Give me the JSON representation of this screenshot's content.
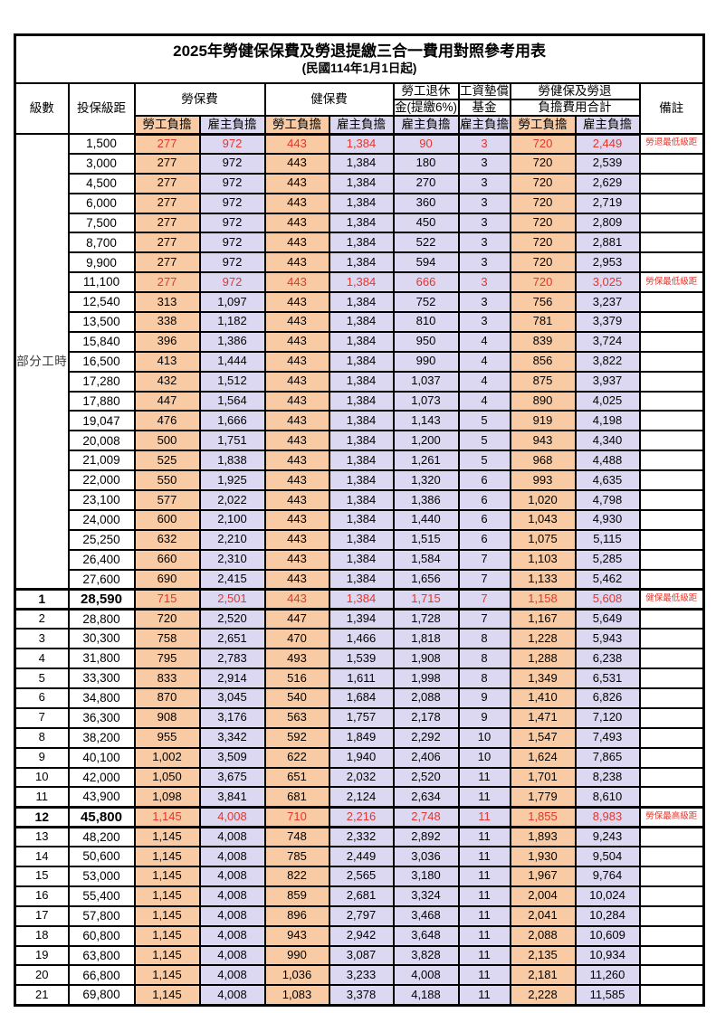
{
  "title": "2025年勞健保保費及勞退提繳三合一費用對照參考用表",
  "subtitle": "(民國114年1月1日起)",
  "colors": {
    "employee_column_bg": "#F8CBA4",
    "employer_column_bg": "#DCD8F1",
    "highlight_red": "#E3362C",
    "grid_border": "#000000"
  },
  "columns": {
    "level": "級數",
    "bracket": "投保級距",
    "labor_insurance": "勞保費",
    "health_insurance": "健保費",
    "pension_line1": "勞工退休",
    "pension_line2": "金(提繳6%)",
    "wage_fund_line1": "工資墊償",
    "wage_fund_line2": "基金",
    "total_line1": "勞健保及勞退",
    "total_line2": "負擔費用合計",
    "remark": "備註",
    "employee": "勞工負擔",
    "employer": "雇主負擔"
  },
  "part_time": {
    "label": "部分工時",
    "rowspan": 23
  },
  "rows": [
    {
      "sec": "pt",
      "level": "",
      "bracket": "1,500",
      "v": [
        "277",
        "972",
        "443",
        "1,384",
        "90",
        "3",
        "720",
        "2,449"
      ],
      "remark": "勞退最低級距",
      "red": true,
      "bold": false,
      "thick": false
    },
    {
      "sec": "pt",
      "level": "",
      "bracket": "3,000",
      "v": [
        "277",
        "972",
        "443",
        "1,384",
        "180",
        "3",
        "720",
        "2,539"
      ],
      "remark": "",
      "red": false,
      "bold": false,
      "thick": false
    },
    {
      "sec": "pt",
      "level": "",
      "bracket": "4,500",
      "v": [
        "277",
        "972",
        "443",
        "1,384",
        "270",
        "3",
        "720",
        "2,629"
      ],
      "remark": "",
      "red": false,
      "bold": false,
      "thick": false
    },
    {
      "sec": "pt",
      "level": "",
      "bracket": "6,000",
      "v": [
        "277",
        "972",
        "443",
        "1,384",
        "360",
        "3",
        "720",
        "2,719"
      ],
      "remark": "",
      "red": false,
      "bold": false,
      "thick": false
    },
    {
      "sec": "pt",
      "level": "",
      "bracket": "7,500",
      "v": [
        "277",
        "972",
        "443",
        "1,384",
        "450",
        "3",
        "720",
        "2,809"
      ],
      "remark": "",
      "red": false,
      "bold": false,
      "thick": false
    },
    {
      "sec": "pt",
      "level": "",
      "bracket": "8,700",
      "v": [
        "277",
        "972",
        "443",
        "1,384",
        "522",
        "3",
        "720",
        "2,881"
      ],
      "remark": "",
      "red": false,
      "bold": false,
      "thick": false
    },
    {
      "sec": "pt",
      "level": "",
      "bracket": "9,900",
      "v": [
        "277",
        "972",
        "443",
        "1,384",
        "594",
        "3",
        "720",
        "2,953"
      ],
      "remark": "",
      "red": false,
      "bold": false,
      "thick": false
    },
    {
      "sec": "pt",
      "level": "",
      "bracket": "11,100",
      "v": [
        "277",
        "972",
        "443",
        "1,384",
        "666",
        "3",
        "720",
        "3,025"
      ],
      "remark": "勞保最低級距",
      "red": true,
      "bold": false,
      "thick": false
    },
    {
      "sec": "pt",
      "level": "",
      "bracket": "12,540",
      "v": [
        "313",
        "1,097",
        "443",
        "1,384",
        "752",
        "3",
        "756",
        "3,237"
      ],
      "remark": "",
      "red": false,
      "bold": false,
      "thick": false
    },
    {
      "sec": "pt",
      "level": "",
      "bracket": "13,500",
      "v": [
        "338",
        "1,182",
        "443",
        "1,384",
        "810",
        "3",
        "781",
        "3,379"
      ],
      "remark": "",
      "red": false,
      "bold": false,
      "thick": false
    },
    {
      "sec": "pt",
      "level": "",
      "bracket": "15,840",
      "v": [
        "396",
        "1,386",
        "443",
        "1,384",
        "950",
        "4",
        "839",
        "3,724"
      ],
      "remark": "",
      "red": false,
      "bold": false,
      "thick": false
    },
    {
      "sec": "pt",
      "level": "",
      "bracket": "16,500",
      "v": [
        "413",
        "1,444",
        "443",
        "1,384",
        "990",
        "4",
        "856",
        "3,822"
      ],
      "remark": "",
      "red": false,
      "bold": false,
      "thick": false
    },
    {
      "sec": "pt",
      "level": "",
      "bracket": "17,280",
      "v": [
        "432",
        "1,512",
        "443",
        "1,384",
        "1,037",
        "4",
        "875",
        "3,937"
      ],
      "remark": "",
      "red": false,
      "bold": false,
      "thick": false
    },
    {
      "sec": "pt",
      "level": "",
      "bracket": "17,880",
      "v": [
        "447",
        "1,564",
        "443",
        "1,384",
        "1,073",
        "4",
        "890",
        "4,025"
      ],
      "remark": "",
      "red": false,
      "bold": false,
      "thick": false
    },
    {
      "sec": "pt",
      "level": "",
      "bracket": "19,047",
      "v": [
        "476",
        "1,666",
        "443",
        "1,384",
        "1,143",
        "5",
        "919",
        "4,198"
      ],
      "remark": "",
      "red": false,
      "bold": false,
      "thick": false
    },
    {
      "sec": "pt",
      "level": "",
      "bracket": "20,008",
      "v": [
        "500",
        "1,751",
        "443",
        "1,384",
        "1,200",
        "5",
        "943",
        "4,340"
      ],
      "remark": "",
      "red": false,
      "bold": false,
      "thick": false
    },
    {
      "sec": "pt",
      "level": "",
      "bracket": "21,009",
      "v": [
        "525",
        "1,838",
        "443",
        "1,384",
        "1,261",
        "5",
        "968",
        "4,488"
      ],
      "remark": "",
      "red": false,
      "bold": false,
      "thick": false
    },
    {
      "sec": "pt",
      "level": "",
      "bracket": "22,000",
      "v": [
        "550",
        "1,925",
        "443",
        "1,384",
        "1,320",
        "6",
        "993",
        "4,635"
      ],
      "remark": "",
      "red": false,
      "bold": false,
      "thick": false
    },
    {
      "sec": "pt",
      "level": "",
      "bracket": "23,100",
      "v": [
        "577",
        "2,022",
        "443",
        "1,384",
        "1,386",
        "6",
        "1,020",
        "4,798"
      ],
      "remark": "",
      "red": false,
      "bold": false,
      "thick": false
    },
    {
      "sec": "pt",
      "level": "",
      "bracket": "24,000",
      "v": [
        "600",
        "2,100",
        "443",
        "1,384",
        "1,440",
        "6",
        "1,043",
        "4,930"
      ],
      "remark": "",
      "red": false,
      "bold": false,
      "thick": false
    },
    {
      "sec": "pt",
      "level": "",
      "bracket": "25,250",
      "v": [
        "632",
        "2,210",
        "443",
        "1,384",
        "1,515",
        "6",
        "1,075",
        "5,115"
      ],
      "remark": "",
      "red": false,
      "bold": false,
      "thick": false
    },
    {
      "sec": "pt",
      "level": "",
      "bracket": "26,400",
      "v": [
        "660",
        "2,310",
        "443",
        "1,384",
        "1,584",
        "7",
        "1,103",
        "5,285"
      ],
      "remark": "",
      "red": false,
      "bold": false,
      "thick": false
    },
    {
      "sec": "pt",
      "level": "",
      "bracket": "27,600",
      "v": [
        "690",
        "2,415",
        "443",
        "1,384",
        "1,656",
        "7",
        "1,133",
        "5,462"
      ],
      "remark": "",
      "red": false,
      "bold": false,
      "thick": false
    },
    {
      "sec": "n",
      "level": "1",
      "bracket": "28,590",
      "v": [
        "715",
        "2,501",
        "443",
        "1,384",
        "1,715",
        "7",
        "1,158",
        "5,608"
      ],
      "remark": "健保最低級距",
      "red": true,
      "bold": true,
      "thick": true
    },
    {
      "sec": "n",
      "level": "2",
      "bracket": "28,800",
      "v": [
        "720",
        "2,520",
        "447",
        "1,394",
        "1,728",
        "7",
        "1,167",
        "5,649"
      ],
      "remark": "",
      "red": false,
      "bold": false,
      "thick": false
    },
    {
      "sec": "n",
      "level": "3",
      "bracket": "30,300",
      "v": [
        "758",
        "2,651",
        "470",
        "1,466",
        "1,818",
        "8",
        "1,228",
        "5,943"
      ],
      "remark": "",
      "red": false,
      "bold": false,
      "thick": false
    },
    {
      "sec": "n",
      "level": "4",
      "bracket": "31,800",
      "v": [
        "795",
        "2,783",
        "493",
        "1,539",
        "1,908",
        "8",
        "1,288",
        "6,238"
      ],
      "remark": "",
      "red": false,
      "bold": false,
      "thick": false
    },
    {
      "sec": "n",
      "level": "5",
      "bracket": "33,300",
      "v": [
        "833",
        "2,914",
        "516",
        "1,611",
        "1,998",
        "8",
        "1,349",
        "6,531"
      ],
      "remark": "",
      "red": false,
      "bold": false,
      "thick": false
    },
    {
      "sec": "n",
      "level": "6",
      "bracket": "34,800",
      "v": [
        "870",
        "3,045",
        "540",
        "1,684",
        "2,088",
        "9",
        "1,410",
        "6,826"
      ],
      "remark": "",
      "red": false,
      "bold": false,
      "thick": false
    },
    {
      "sec": "n",
      "level": "7",
      "bracket": "36,300",
      "v": [
        "908",
        "3,176",
        "563",
        "1,757",
        "2,178",
        "9",
        "1,471",
        "7,120"
      ],
      "remark": "",
      "red": false,
      "bold": false,
      "thick": false
    },
    {
      "sec": "n",
      "level": "8",
      "bracket": "38,200",
      "v": [
        "955",
        "3,342",
        "592",
        "1,849",
        "2,292",
        "10",
        "1,547",
        "7,493"
      ],
      "remark": "",
      "red": false,
      "bold": false,
      "thick": false
    },
    {
      "sec": "n",
      "level": "9",
      "bracket": "40,100",
      "v": [
        "1,002",
        "3,509",
        "622",
        "1,940",
        "2,406",
        "10",
        "1,624",
        "7,865"
      ],
      "remark": "",
      "red": false,
      "bold": false,
      "thick": false
    },
    {
      "sec": "n",
      "level": "10",
      "bracket": "42,000",
      "v": [
        "1,050",
        "3,675",
        "651",
        "2,032",
        "2,520",
        "11",
        "1,701",
        "8,238"
      ],
      "remark": "",
      "red": false,
      "bold": false,
      "thick": false
    },
    {
      "sec": "n",
      "level": "11",
      "bracket": "43,900",
      "v": [
        "1,098",
        "3,841",
        "681",
        "2,124",
        "2,634",
        "11",
        "1,779",
        "8,610"
      ],
      "remark": "",
      "red": false,
      "bold": false,
      "thick": false
    },
    {
      "sec": "n",
      "level": "12",
      "bracket": "45,800",
      "v": [
        "1,145",
        "4,008",
        "710",
        "2,216",
        "2,748",
        "11",
        "1,855",
        "8,983"
      ],
      "remark": "勞保最高級距",
      "red": true,
      "bold": true,
      "thick": true
    },
    {
      "sec": "n",
      "level": "13",
      "bracket": "48,200",
      "v": [
        "1,145",
        "4,008",
        "748",
        "2,332",
        "2,892",
        "11",
        "1,893",
        "9,243"
      ],
      "remark": "",
      "red": false,
      "bold": false,
      "thick": false
    },
    {
      "sec": "n",
      "level": "14",
      "bracket": "50,600",
      "v": [
        "1,145",
        "4,008",
        "785",
        "2,449",
        "3,036",
        "11",
        "1,930",
        "9,504"
      ],
      "remark": "",
      "red": false,
      "bold": false,
      "thick": false
    },
    {
      "sec": "n",
      "level": "15",
      "bracket": "53,000",
      "v": [
        "1,145",
        "4,008",
        "822",
        "2,565",
        "3,180",
        "11",
        "1,967",
        "9,764"
      ],
      "remark": "",
      "red": false,
      "bold": false,
      "thick": false
    },
    {
      "sec": "n",
      "level": "16",
      "bracket": "55,400",
      "v": [
        "1,145",
        "4,008",
        "859",
        "2,681",
        "3,324",
        "11",
        "2,004",
        "10,024"
      ],
      "remark": "",
      "red": false,
      "bold": false,
      "thick": false
    },
    {
      "sec": "n",
      "level": "17",
      "bracket": "57,800",
      "v": [
        "1,145",
        "4,008",
        "896",
        "2,797",
        "3,468",
        "11",
        "2,041",
        "10,284"
      ],
      "remark": "",
      "red": false,
      "bold": false,
      "thick": false
    },
    {
      "sec": "n",
      "level": "18",
      "bracket": "60,800",
      "v": [
        "1,145",
        "4,008",
        "943",
        "2,942",
        "3,648",
        "11",
        "2,088",
        "10,609"
      ],
      "remark": "",
      "red": false,
      "bold": false,
      "thick": false
    },
    {
      "sec": "n",
      "level": "19",
      "bracket": "63,800",
      "v": [
        "1,145",
        "4,008",
        "990",
        "3,087",
        "3,828",
        "11",
        "2,135",
        "10,934"
      ],
      "remark": "",
      "red": false,
      "bold": false,
      "thick": false
    },
    {
      "sec": "n",
      "level": "20",
      "bracket": "66,800",
      "v": [
        "1,145",
        "4,008",
        "1,036",
        "3,233",
        "4,008",
        "11",
        "2,181",
        "11,260"
      ],
      "remark": "",
      "red": false,
      "bold": false,
      "thick": false
    },
    {
      "sec": "n",
      "level": "21",
      "bracket": "69,800",
      "v": [
        "1,145",
        "4,008",
        "1,083",
        "3,378",
        "4,188",
        "11",
        "2,228",
        "11,585"
      ],
      "remark": "",
      "red": false,
      "bold": false,
      "thick": false
    }
  ]
}
